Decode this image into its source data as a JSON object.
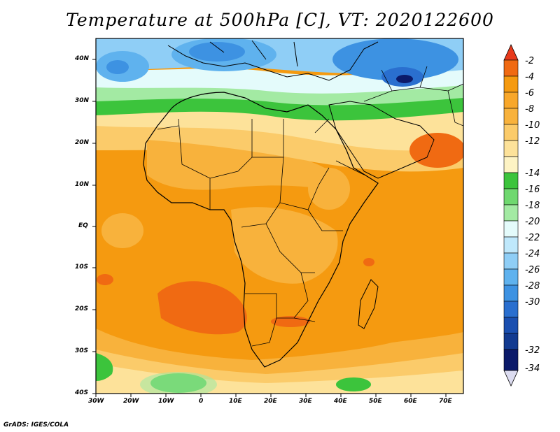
{
  "title": "Temperature at 500hPa [C], VT: 2020122600",
  "footer": "GrADS: IGES/COLA",
  "y_axis_labels": [
    "40N",
    "30N",
    "20N",
    "10N",
    "EQ",
    "10S",
    "20S",
    "30S",
    "40S"
  ],
  "x_axis_labels": [
    "30W",
    "20W",
    "10W",
    "0",
    "10E",
    "20E",
    "30E",
    "40E",
    "50E",
    "60E",
    "70E"
  ],
  "colorbar": {
    "levels": [
      "-2",
      "-4",
      "-6",
      "-8",
      "-10",
      "-12",
      "-14",
      "-16",
      "-18",
      "-20",
      "-22",
      "-24",
      "-26",
      "-28",
      "-30",
      "-32",
      "-34"
    ],
    "colors": [
      "#e83a1c",
      "#f06a12",
      "#f59a10",
      "#f8b23c",
      "#fbcb6a",
      "#fde29a",
      "#fdf3c4",
      "#3cc43c",
      "#6fd86f",
      "#a3eaa3",
      "#e4fbfb",
      "#bfe8fb",
      "#8fcef6",
      "#5fb2ee",
      "#3d92e2",
      "#2a6fcf",
      "#1a4fb0",
      "#0b1a6a",
      "#dcdcf0"
    ]
  },
  "map_colors": {
    "hot": "#f06a12",
    "warm": "#f59a10",
    "mild": "#f8b23c",
    "cool": "#fbcb6a",
    "pale": "#fde29a",
    "green": "#3cc43c",
    "lightgreen": "#a3eaa3",
    "cyan": "#e4fbfb",
    "lightblue": "#8fcef6",
    "blue": "#3d92e2",
    "darkblue": "#1a4fb0"
  }
}
